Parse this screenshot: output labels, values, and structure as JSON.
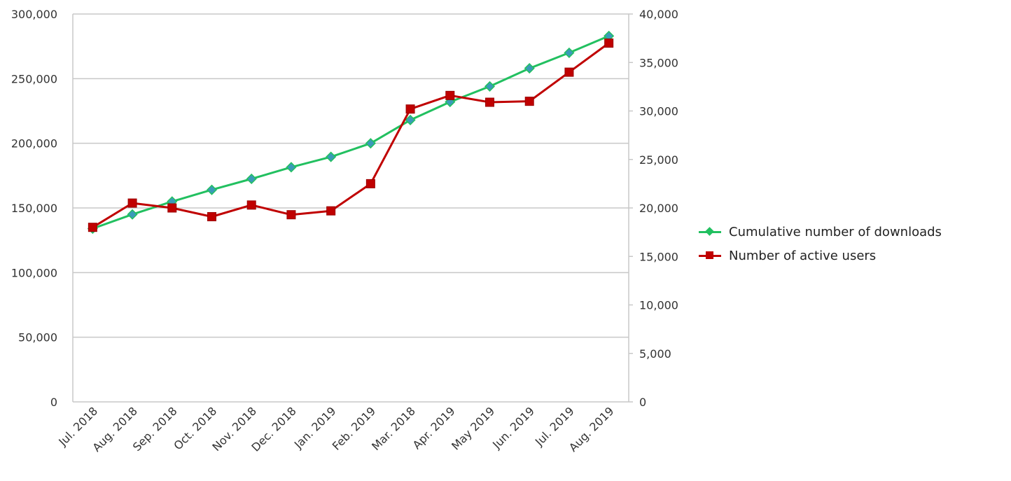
{
  "chart_data": {
    "type": "line",
    "categories": [
      "Jul. 2018",
      "Aug. 2018",
      "Sep. 2018",
      "Oct. 2018",
      "Nov. 2018",
      "Dec. 2018",
      "Jan. 2019",
      "Feb. 2019",
      "Mar. 2018",
      "Apr. 2019",
      "May 2019",
      "Jun. 2019",
      "Jul. 2019",
      "Aug. 2019"
    ],
    "left_axis": {
      "ylim": [
        0,
        300000
      ],
      "ticks": [
        "0",
        "50,000",
        "100,000",
        "150,000",
        "200,000",
        "250,000",
        "300,000"
      ]
    },
    "right_axis": {
      "ylim": [
        0,
        40000
      ],
      "ticks": [
        "0",
        "5,000",
        "10,000",
        "15,000",
        "20,000",
        "25,000",
        "30,000",
        "35,000",
        "40,000"
      ]
    },
    "series": [
      {
        "name": "Cumulative number of downloads",
        "axis": "left",
        "color": "#22c060",
        "marker": "diamond",
        "marker_color": "#3a9bb8",
        "values": [
          134000,
          145000,
          155000,
          164000,
          172500,
          181500,
          189500,
          200000,
          218000,
          232000,
          244000,
          258000,
          270000,
          283000
        ]
      },
      {
        "name": "Number of active users",
        "axis": "right",
        "color": "#c00000",
        "marker": "square",
        "marker_color": "#c00000",
        "values": [
          18000,
          20500,
          20000,
          19100,
          20300,
          19300,
          19700,
          22500,
          30200,
          31600,
          30900,
          31000,
          34000,
          37000
        ]
      }
    ],
    "grid": true,
    "legend_position": "right"
  }
}
